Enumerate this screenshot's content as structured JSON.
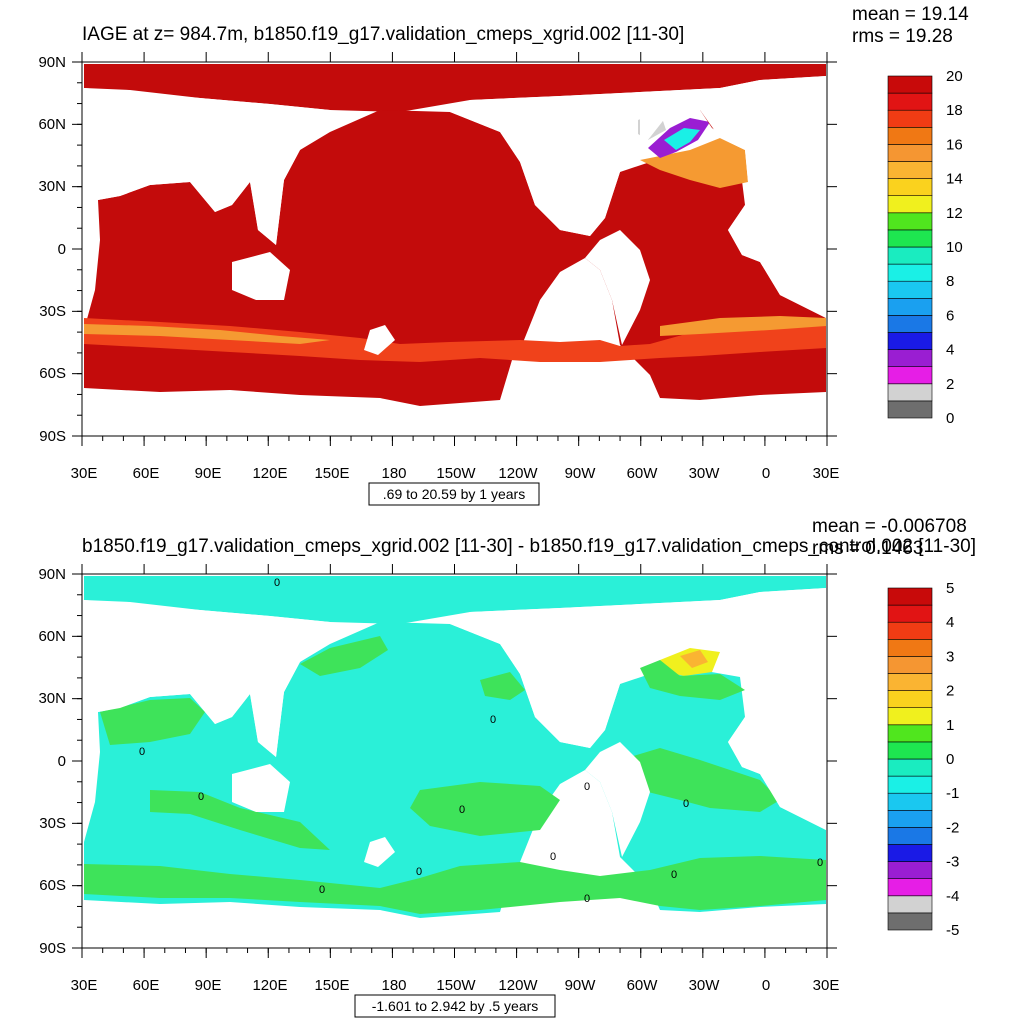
{
  "chart_data": [
    {
      "type": "heatmap",
      "title": "IAGE at z= 984.7m, b1850.f19_g17.validation_cmeps_xgrid.002 [11-30]",
      "stats": [
        "mean = 19.14",
        "rms = 19.28"
      ],
      "xlabel": "",
      "ylabel": "",
      "x_ticks": [
        "30E",
        "60E",
        "90E",
        "120E",
        "150E",
        "180",
        "150W",
        "120W",
        "90W",
        "60W",
        "30W",
        "0",
        "30E"
      ],
      "y_ticks": [
        "90N",
        "60N",
        "30N",
        "0",
        "30S",
        "60S",
        "90S"
      ],
      "xlim": [
        30,
        390
      ],
      "ylim": [
        -90,
        90
      ],
      "colorbar": {
        "levels": [
          0,
          1,
          2,
          3,
          4,
          5,
          6,
          7,
          8,
          9,
          10,
          11,
          12,
          13,
          14,
          15,
          16,
          17,
          18,
          19,
          20
        ],
        "tick_labels": [
          "0",
          "2",
          "4",
          "6",
          "8",
          "10",
          "12",
          "14",
          "16",
          "18",
          "20"
        ],
        "colors": [
          "#6e6e6e",
          "#d2d2d2",
          "#e61ee6",
          "#9a1ed2",
          "#1a1ae6",
          "#1a78e6",
          "#1aa0f0",
          "#1ac8f0",
          "#1af0e6",
          "#1aecc0",
          "#1ee650",
          "#50e61e",
          "#f0f01e",
          "#fad21e",
          "#fab432",
          "#f59632",
          "#f07814",
          "#f03c14",
          "#e11414",
          "#c80a0a"
        ]
      },
      "note": ".69 to 20.59 by 1 years"
    },
    {
      "type": "heatmap",
      "title": "b1850.f19_g17.validation_cmeps_xgrid.002 [11-30] - b1850.f19_g17.validation_cmeps_control.002 [11-30]",
      "stats": [
        "mean = -0.006708",
        "rms = 0.1463"
      ],
      "xlabel": "",
      "ylabel": "",
      "x_ticks": [
        "30E",
        "60E",
        "90E",
        "120E",
        "150E",
        "180",
        "150W",
        "120W",
        "90W",
        "60W",
        "30W",
        "0",
        "30E"
      ],
      "y_ticks": [
        "90N",
        "60N",
        "30N",
        "0",
        "30S",
        "60S",
        "90S"
      ],
      "xlim": [
        30,
        390
      ],
      "ylim": [
        -90,
        90
      ],
      "colorbar": {
        "levels": [
          -5,
          -4.5,
          -4,
          -3.5,
          -3,
          -2.5,
          -2,
          -1.5,
          -1,
          -0.5,
          0,
          0.5,
          1,
          1.5,
          2,
          2.5,
          3,
          3.5,
          4,
          4.5,
          5
        ],
        "tick_labels": [
          "-5",
          "-4",
          "-3",
          "-2",
          "-1",
          "0",
          "1",
          "2",
          "3",
          "4",
          "5"
        ],
        "colors": [
          "#6e6e6e",
          "#d2d2d2",
          "#e61ee6",
          "#9a1ed2",
          "#1a1ae6",
          "#1a78e6",
          "#1aa0f0",
          "#1ac8f0",
          "#1af0e6",
          "#1aecc0",
          "#1ee650",
          "#50e61e",
          "#f0f01e",
          "#fad21e",
          "#fab432",
          "#f59632",
          "#f07814",
          "#f03c14",
          "#e11414",
          "#c80a0a"
        ]
      },
      "contour_labels": [
        "0",
        "0",
        "0",
        "0",
        "0",
        "0",
        "0",
        "0",
        "0",
        "0",
        "0",
        "0",
        "0"
      ],
      "note": "-1.601 to 2.942 by .5 years"
    }
  ],
  "colors": {
    "ocean_top_main": "#c30b0b",
    "ocean_top_band": "#f0421b",
    "ocean_top_orange": "#f59a32",
    "land": "#ffffff",
    "ocean_bottom_main": "#2af0d8",
    "ocean_bottom_positive": "#3ee35a",
    "axis": "#000000"
  }
}
